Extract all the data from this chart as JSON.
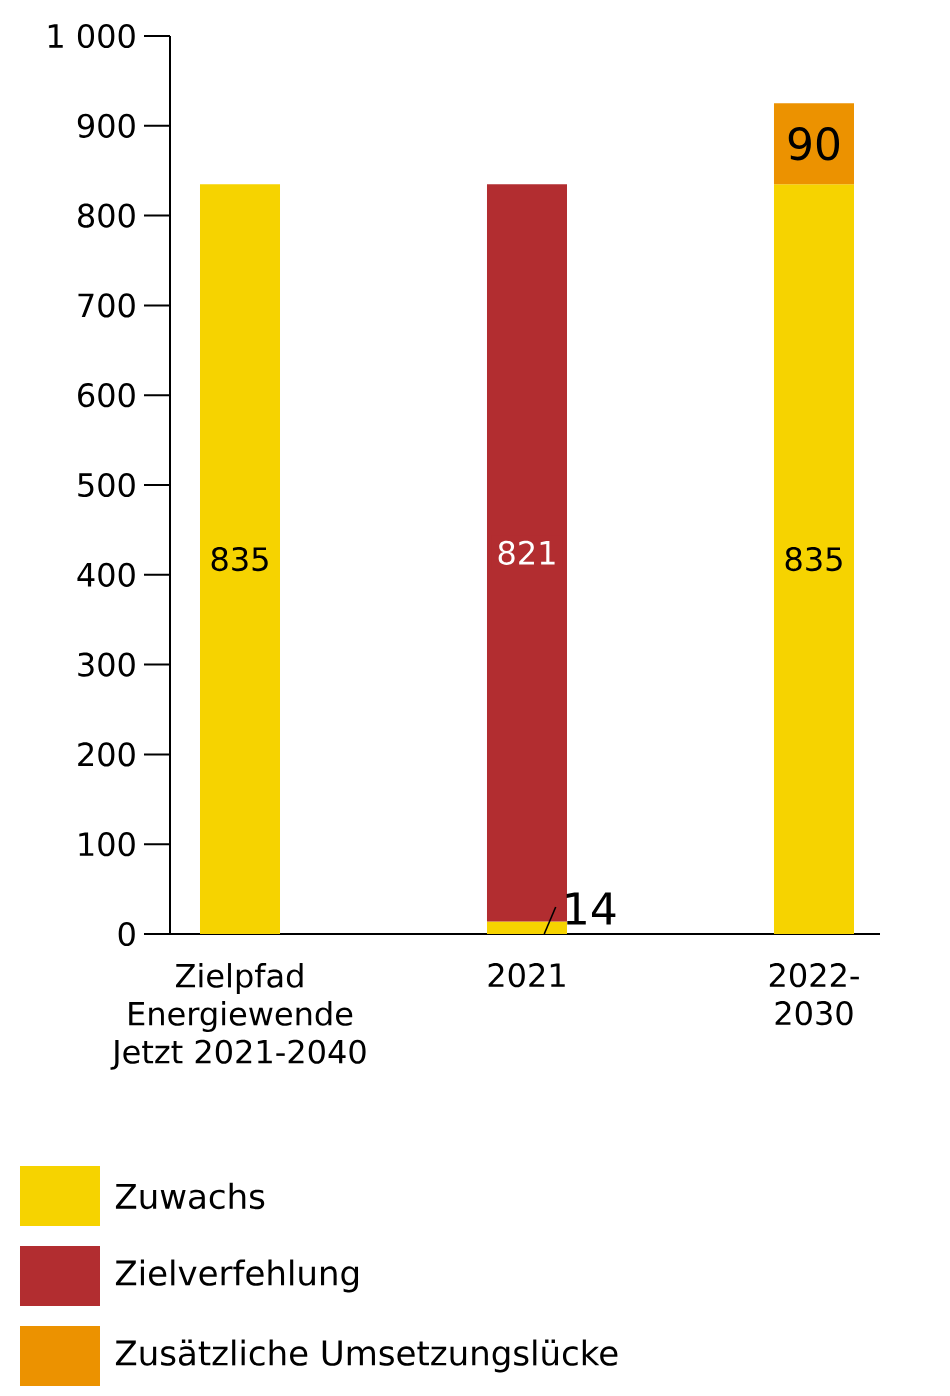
{
  "chart_data": {
    "type": "bar",
    "stacked": true,
    "data_labels": true,
    "legend": "bottom",
    "categories": [
      "Zielpfad Energiewende Jetzt 2021-2040",
      "2021",
      "2022-2030"
    ],
    "series": [
      {
        "name": "Zuwachs",
        "color": "#f6d300",
        "values": [
          835,
          14,
          835
        ]
      },
      {
        "name": "Zielverfehlung",
        "color": "#b22d30",
        "values": [
          null,
          821,
          null
        ]
      },
      {
        "name": "Zusätzliche Umsetzungslücke",
        "color": "#ec9200",
        "values": [
          null,
          null,
          90
        ]
      }
    ],
    "ylim": [
      0,
      1000
    ],
    "yticks": [
      0,
      100,
      200,
      300,
      400,
      500,
      600,
      700,
      800,
      900,
      {
        "value": 1000,
        "label": "1 000"
      }
    ]
  }
}
